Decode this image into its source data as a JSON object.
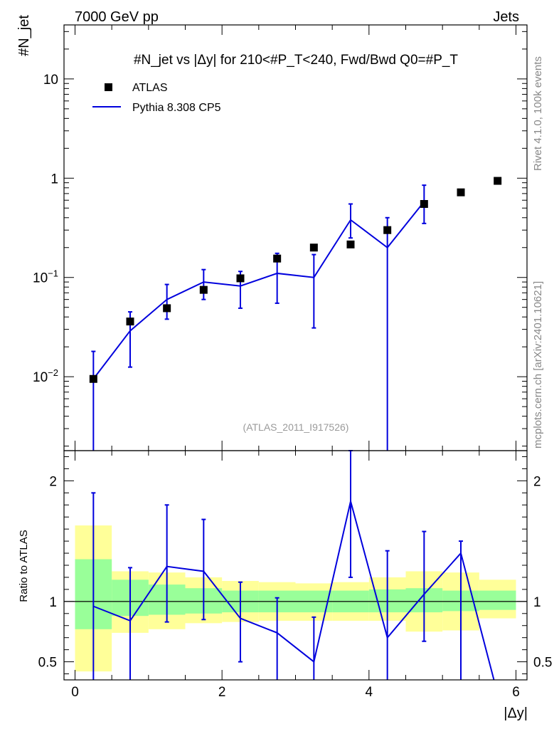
{
  "header": {
    "energy": "7000 GeV pp",
    "category": "Jets",
    "reference": "(ATLAS_2011_I917526)",
    "side_top": "Rivet 4.1.0,  100k events",
    "side_bottom": "mcplots.cern.ch [arXiv:2401.10621]"
  },
  "chart_data": [
    {
      "type": "line",
      "title": "#N_jet vs |Δy| for 210<#P_T<240, Fwd/Bwd Q0=#P_T",
      "xlabel": "|Δy|",
      "ylabel": "#N_jet",
      "xlim": [
        -0.15,
        6.15
      ],
      "ylim": [
        0.0018,
        35
      ],
      "yscale": "log",
      "y_ticks": [
        "10^-2",
        "10^-1",
        "1",
        "10"
      ],
      "legend": {
        "position": "top-left",
        "entries": [
          "ATLAS",
          "Pythia 8.308 CP5"
        ]
      },
      "series": [
        {
          "name": "ATLAS",
          "color": "#000000",
          "marker": "square",
          "x": [
            0.25,
            0.75,
            1.25,
            1.75,
            2.25,
            2.75,
            3.25,
            3.75,
            4.25,
            4.75,
            5.25,
            5.75
          ],
          "values": [
            0.0095,
            0.036,
            0.049,
            0.075,
            0.098,
            0.155,
            0.2,
            0.215,
            0.3,
            0.55,
            0.72,
            0.94
          ]
        },
        {
          "name": "Pythia 8.308 CP5",
          "color": "#0000dd",
          "x": [
            0.25,
            0.75,
            1.25,
            1.75,
            2.25,
            2.75,
            3.25,
            3.75,
            4.25,
            4.75
          ],
          "values": [
            0.0095,
            0.029,
            0.06,
            0.09,
            0.082,
            0.11,
            0.1,
            0.38,
            0.2,
            0.58
          ],
          "err_low": [
            0.0018,
            0.0125,
            0.038,
            0.06,
            0.049,
            0.055,
            0.031,
            0.25,
            0.0018,
            0.35
          ],
          "err_high": [
            0.018,
            0.045,
            0.085,
            0.12,
            0.115,
            0.175,
            0.17,
            0.55,
            0.4,
            0.85
          ]
        }
      ]
    },
    {
      "type": "line",
      "xlabel": "|Δy|",
      "ylabel": "Ratio to ATLAS",
      "xlim": [
        -0.15,
        6.15
      ],
      "ylim": [
        0.35,
        2.25
      ],
      "x_ticks": [
        0,
        2,
        4,
        6
      ],
      "y_ticks": [
        0.5,
        1,
        2
      ],
      "uncertainty_bands": {
        "bin_edges": [
          0,
          0.5,
          1,
          1.5,
          2,
          2.5,
          3,
          3.5,
          4,
          4.5,
          5,
          5.5,
          6
        ],
        "green_low": [
          0.77,
          0.88,
          0.89,
          0.9,
          0.91,
          0.91,
          0.91,
          0.91,
          0.91,
          0.91,
          0.92,
          0.93
        ],
        "green_high": [
          1.35,
          1.18,
          1.14,
          1.11,
          1.09,
          1.09,
          1.09,
          1.09,
          1.1,
          1.11,
          1.09,
          1.09
        ],
        "yellow_low": [
          0.42,
          0.74,
          0.77,
          0.82,
          0.83,
          0.84,
          0.84,
          0.84,
          0.84,
          0.75,
          0.76,
          0.86
        ],
        "yellow_high": [
          1.63,
          1.25,
          1.24,
          1.2,
          1.17,
          1.16,
          1.15,
          1.16,
          1.2,
          1.25,
          1.24,
          1.18
        ]
      },
      "series": [
        {
          "name": "Pythia 8.308 CP5 / ATLAS",
          "color": "#0000dd",
          "x": [
            0.25,
            0.75,
            1.25,
            1.75,
            2.25,
            2.75,
            3.25,
            3.75,
            4.25,
            4.75,
            5.25,
            5.7
          ],
          "values": [
            0.96,
            0.84,
            1.29,
            1.25,
            0.86,
            0.74,
            0.5,
            1.83,
            0.7,
            1.06,
            1.4,
            0.33
          ],
          "err_low": [
            0.33,
            0.33,
            0.83,
            0.85,
            0.5,
            0.33,
            0.33,
            1.2,
            0.33,
            0.67,
            0.33,
            null
          ],
          "err_high": [
            1.9,
            1.28,
            1.8,
            1.68,
            1.16,
            1.03,
            0.87,
            2.33,
            1.42,
            1.58,
            1.5,
            null
          ]
        }
      ]
    }
  ]
}
